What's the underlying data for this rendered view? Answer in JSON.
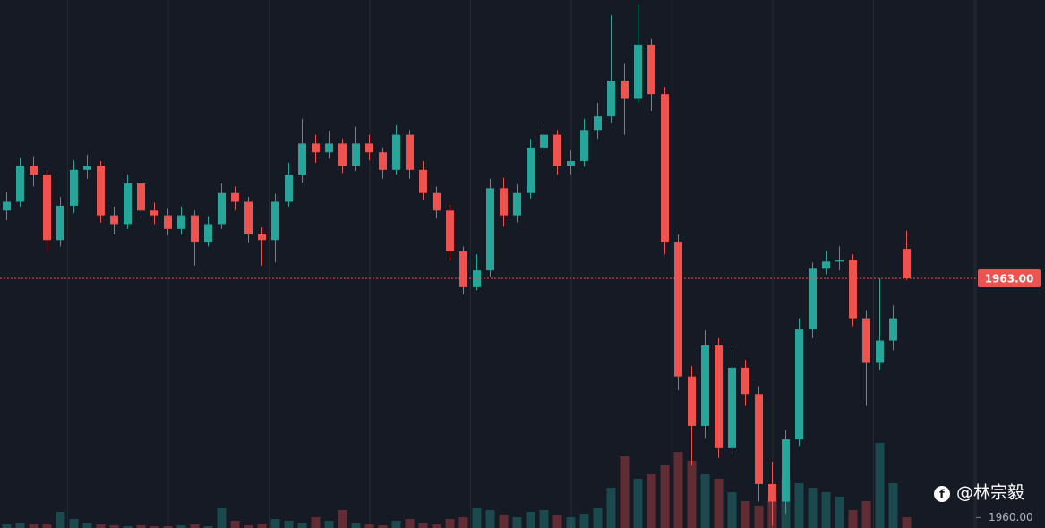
{
  "chart_data": {
    "type": "candlestick",
    "open": [
      1963.85,
      1963.96,
      1964.41,
      1964.3,
      1963.48,
      1963.91,
      1964.36,
      1964.41,
      1963.79,
      1963.68,
      1964.19,
      1963.85,
      1963.79,
      1963.62,
      1963.79,
      1963.46,
      1963.68,
      1964.07,
      1963.96,
      1963.55,
      1963.48,
      1963.96,
      1964.3,
      1964.69,
      1964.58,
      1964.69,
      1964.41,
      1964.69,
      1964.58,
      1964.36,
      1964.8,
      1964.36,
      1964.07,
      1963.85,
      1963.34,
      1962.89,
      1963.1,
      1964.13,
      1963.79,
      1964.07,
      1964.64,
      1964.8,
      1964.41,
      1964.47,
      1964.86,
      1965.03,
      1965.48,
      1965.25,
      1965.93,
      1965.31,
      1963.46,
      1961.77,
      1961.15,
      1962.16,
      1960.87,
      1961.88,
      1961.55,
      1960.42,
      1960.2,
      1960.98,
      1962.36,
      1963.12,
      1963.21,
      1963.23,
      1962.5,
      1961.94,
      1962.22,
      1963.37
    ],
    "high": [
      1964.08,
      1964.52,
      1964.53,
      1964.36,
      1964.02,
      1964.48,
      1964.55,
      1964.47,
      1963.9,
      1964.3,
      1964.25,
      1963.95,
      1963.88,
      1963.9,
      1963.85,
      1963.78,
      1964.19,
      1964.15,
      1964.02,
      1963.64,
      1964.06,
      1964.45,
      1965.0,
      1964.8,
      1964.85,
      1964.75,
      1964.9,
      1964.8,
      1964.64,
      1964.92,
      1964.86,
      1964.47,
      1964.15,
      1963.92,
      1963.4,
      1963.3,
      1964.25,
      1964.26,
      1964.18,
      1964.75,
      1964.93,
      1964.86,
      1964.6,
      1965.0,
      1965.2,
      1966.3,
      1965.7,
      1966.43,
      1966.0,
      1965.4,
      1963.55,
      1961.9,
      1962.35,
      1962.25,
      1962.1,
      1961.98,
      1961.65,
      1960.7,
      1961.1,
      1962.5,
      1963.2,
      1963.35,
      1963.4,
      1963.3,
      1962.6,
      1963.0,
      1962.66,
      1963.6
    ],
    "low": [
      1963.73,
      1963.9,
      1964.15,
      1963.35,
      1963.4,
      1963.82,
      1964.25,
      1963.7,
      1963.55,
      1963.62,
      1963.76,
      1963.68,
      1963.54,
      1963.55,
      1963.16,
      1963.4,
      1963.62,
      1963.85,
      1963.45,
      1963.16,
      1963.2,
      1963.9,
      1964.2,
      1964.45,
      1964.5,
      1964.32,
      1964.35,
      1964.48,
      1964.25,
      1964.3,
      1964.25,
      1963.98,
      1963.75,
      1963.22,
      1962.8,
      1962.85,
      1963.02,
      1963.65,
      1963.7,
      1964.0,
      1964.55,
      1964.3,
      1964.3,
      1964.4,
      1964.75,
      1964.95,
      1964.8,
      1965.2,
      1965.1,
      1963.3,
      1961.6,
      1960.65,
      1961.0,
      1960.75,
      1960.8,
      1961.4,
      1960.2,
      1959.9,
      1960.05,
      1960.9,
      1962.25,
      1963.05,
      1963.1,
      1962.4,
      1961.4,
      1961.85,
      1962.1,
      1962.98
    ],
    "close": [
      1963.96,
      1964.41,
      1964.3,
      1963.48,
      1963.91,
      1964.36,
      1964.41,
      1963.79,
      1963.68,
      1964.19,
      1963.85,
      1963.79,
      1963.62,
      1963.79,
      1963.46,
      1963.68,
      1964.07,
      1963.96,
      1963.55,
      1963.48,
      1963.96,
      1964.3,
      1964.69,
      1964.58,
      1964.69,
      1964.41,
      1964.69,
      1964.58,
      1964.36,
      1964.8,
      1964.36,
      1964.07,
      1963.85,
      1963.34,
      1962.89,
      1963.1,
      1964.13,
      1963.79,
      1964.07,
      1964.64,
      1964.8,
      1964.41,
      1964.47,
      1964.86,
      1965.03,
      1965.48,
      1965.25,
      1965.93,
      1965.31,
      1963.46,
      1961.77,
      1961.15,
      1962.16,
      1960.87,
      1961.88,
      1961.55,
      1960.42,
      1960.2,
      1960.98,
      1962.36,
      1963.12,
      1963.21,
      1963.23,
      1962.5,
      1961.94,
      1962.22,
      1962.5,
      1963.0
    ],
    "volume": [
      4,
      6,
      5,
      4,
      18,
      10,
      6,
      4,
      3,
      2,
      3,
      2,
      2,
      3,
      4,
      2,
      22,
      8,
      3,
      5,
      10,
      8,
      6,
      12,
      8,
      20,
      6,
      4,
      3,
      8,
      10,
      6,
      4,
      10,
      12,
      22,
      20,
      15,
      12,
      18,
      20,
      14,
      12,
      16,
      22,
      45,
      80,
      55,
      60,
      70,
      85,
      75,
      60,
      55,
      40,
      30,
      25,
      35,
      55,
      50,
      45,
      40,
      35,
      20,
      30,
      95,
      50,
      12
    ],
    "volume_ylim": [
      0,
      100
    ],
    "ylim": [
      1959.87,
      1966.49
    ],
    "yticks": [
      {
        "value": 1960,
        "label": "1960.00"
      }
    ],
    "last_price": {
      "value": 1963,
      "label": "1963.00"
    },
    "up_color": "#26a69a",
    "down_color": "#ef5350",
    "watermark": "@林宗毅"
  }
}
